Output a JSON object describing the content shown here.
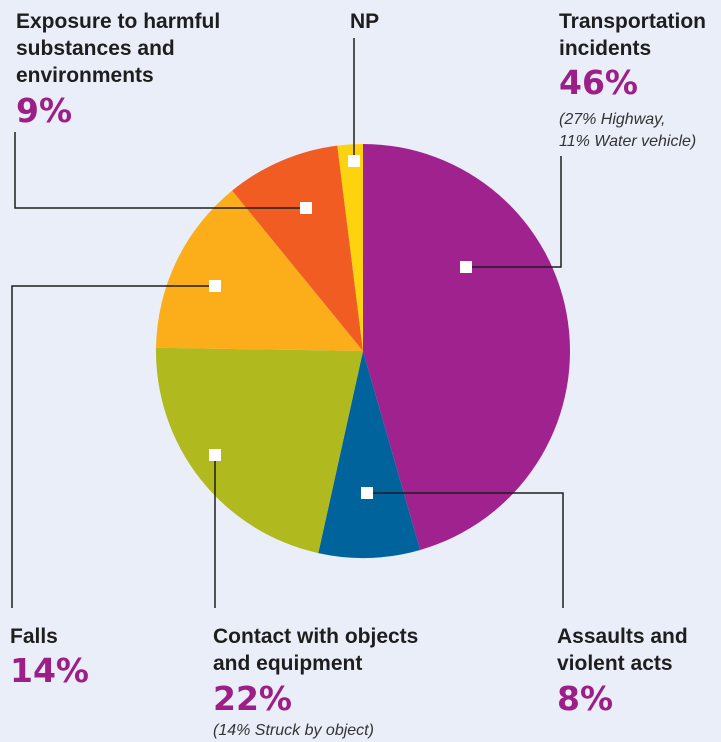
{
  "chart_data": {
    "type": "pie",
    "start_angle_deg": 0,
    "direction": "clockwise",
    "legend": "none",
    "slices": [
      {
        "title_lines": [
          "Transportation",
          "incidents"
        ],
        "percent_label": "46%",
        "value": 46,
        "note_lines": [
          "(27% Highway,",
          "11% Water vehicle)"
        ],
        "color": "#a0228f"
      },
      {
        "title_lines": [
          "Assaults and",
          "violent acts"
        ],
        "percent_label": "8%",
        "value": 8,
        "note_lines": [],
        "color": "#00639c"
      },
      {
        "title_lines": [
          "Contact with objects",
          "and equipment"
        ],
        "percent_label": "22%",
        "value": 22,
        "note_lines": [
          "(14% Struck by object)"
        ],
        "color": "#b0b91e"
      },
      {
        "title_lines": [
          "Falls"
        ],
        "percent_label": "14%",
        "value": 14,
        "note_lines": [],
        "color": "#fbad1a"
      },
      {
        "title_lines": [
          "Exposure to harmful",
          "substances and",
          "environments"
        ],
        "percent_label": "9%",
        "value": 9,
        "note_lines": [],
        "color": "#f15c22"
      },
      {
        "title_lines": [
          "NP"
        ],
        "percent_label": "",
        "value": 2,
        "note_lines": [],
        "color": "#fdd20e"
      }
    ]
  }
}
